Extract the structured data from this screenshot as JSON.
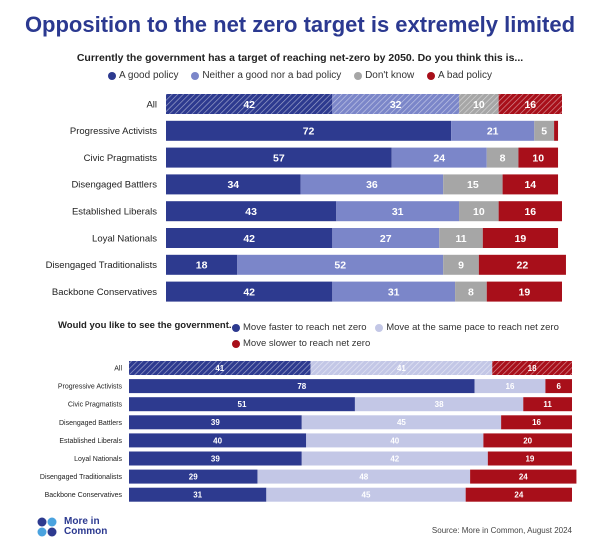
{
  "title": "Opposition to the net zero target is extremely limited",
  "footer": {
    "logo_text": "More in Common",
    "source": "Source: More in Common, August 2024"
  },
  "colors": {
    "good": "#2d3a8f",
    "neither": "#7b86c9",
    "dontknow": "#a6a6a6",
    "bad": "#a80f1a",
    "faster": "#2d3a8f",
    "same": "#c3c7e6",
    "slower": "#a80f1a",
    "title": "#2b3990"
  },
  "chart_data": [
    {
      "type": "bar",
      "orientation": "horizontal",
      "stacked": true,
      "title": "Currently the government has a target of reaching net-zero by 2050. Do you think this is...",
      "categories": [
        "All",
        "Progressive Activists",
        "Civic Pragmatists",
        "Disengaged Battlers",
        "Established Liberals",
        "Loyal Nationals",
        "Disengaged Traditionalists",
        "Backbone Conservatives"
      ],
      "series": [
        {
          "name": "A good policy",
          "values": [
            42,
            72,
            57,
            34,
            43,
            42,
            18,
            42
          ]
        },
        {
          "name": "Neither a good nor a bad policy",
          "values": [
            32,
            21,
            24,
            36,
            31,
            27,
            52,
            31
          ]
        },
        {
          "name": "Don't know",
          "values": [
            10,
            5,
            8,
            15,
            10,
            11,
            9,
            8
          ]
        },
        {
          "name": "A bad policy",
          "values": [
            16,
            1,
            10,
            14,
            16,
            19,
            22,
            19
          ]
        }
      ],
      "hatched_category": "All",
      "xlim": [
        0,
        100
      ]
    },
    {
      "type": "bar",
      "orientation": "horizontal",
      "stacked": true,
      "title": "Would you like to see the government...",
      "categories": [
        "All",
        "Progressive Activists",
        "Civic Pragmatists",
        "Disengaged Battlers",
        "Established Liberals",
        "Loyal Nationals",
        "Disengaged Traditionalists",
        "Backbone Conservatives"
      ],
      "series": [
        {
          "name": "Move faster to reach net zero",
          "values": [
            41,
            78,
            51,
            39,
            40,
            39,
            29,
            31
          ]
        },
        {
          "name": "Move at the same pace to reach net zero",
          "values": [
            41,
            16,
            38,
            45,
            40,
            42,
            48,
            45
          ]
        },
        {
          "name": "Move slower to reach net zero",
          "values": [
            18,
            6,
            11,
            16,
            20,
            19,
            24,
            24
          ]
        }
      ],
      "hatched_category": "All",
      "xlim": [
        0,
        100
      ]
    }
  ]
}
